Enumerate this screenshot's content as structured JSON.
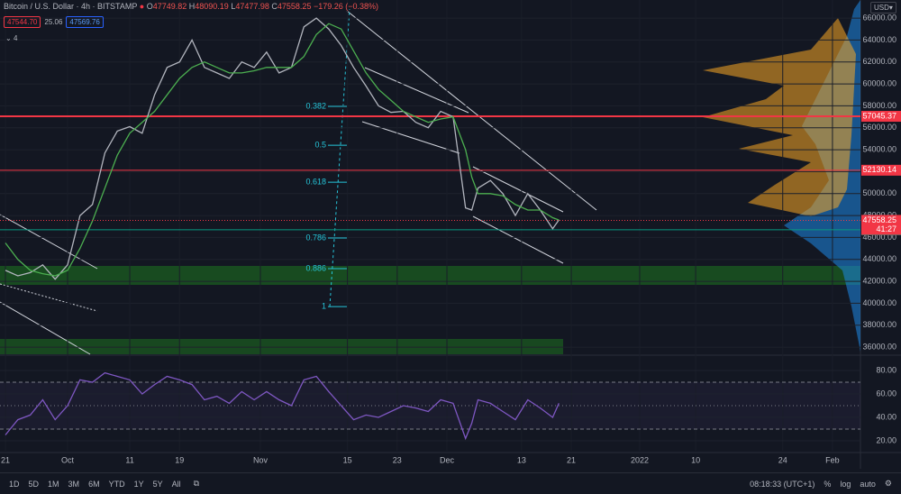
{
  "header": {
    "symbol": "Bitcoin / U.S. Dollar",
    "interval": "4h",
    "exchange": "BITSTAMP",
    "ohlc": [
      {
        "key": "O",
        "value": "47749.82"
      },
      {
        "key": "H",
        "value": "48090.19"
      },
      {
        "key": "L",
        "value": "47477.98"
      },
      {
        "key": "C",
        "value": "47558.25"
      }
    ],
    "change": "−179.26 (−0.38%)",
    "sell": "47544.70",
    "spread": "25.06",
    "buy": "47569.76",
    "indicators": "4",
    "currency": "USD"
  },
  "toolbar": {
    "ranges": [
      "1D",
      "5D",
      "1M",
      "3M",
      "6M",
      "YTD",
      "1Y",
      "5Y",
      "All"
    ],
    "clock": "08:18:33 (UTC+1)",
    "options": [
      "%",
      "log",
      "auto"
    ]
  },
  "chart_data": [
    {
      "type": "line",
      "x": [
        0,
        2,
        4,
        6,
        8,
        10,
        12,
        14,
        16,
        18,
        20,
        22,
        24,
        26,
        28,
        30,
        32,
        34,
        36,
        38,
        40,
        42,
        44,
        46,
        48,
        50,
        52,
        54,
        56,
        58,
        60,
        62,
        64,
        66,
        68,
        70,
        72,
        74,
        75,
        76,
        78,
        80,
        82,
        84,
        86,
        88,
        89
      ],
      "series": [
        {
          "color": "#b2b5be",
          "values": [
            43000,
            42500,
            42800,
            43500,
            42200,
            43500,
            48000,
            49000,
            53700,
            55700,
            56100,
            55500,
            59000,
            61500,
            62000,
            64000,
            61500,
            61000,
            60500,
            62000,
            61500,
            62900,
            61000,
            61500,
            65200,
            66000,
            65000,
            63500,
            61500,
            59800,
            58000,
            57400,
            57500,
            56500,
            56000,
            57500,
            57000,
            48700,
            48500,
            50500,
            51200,
            50000,
            48000,
            50000,
            48500,
            46800,
            47600
          ]
        },
        {
          "color": "#4caf50",
          "values": [
            45500,
            44000,
            43000,
            42700,
            42500,
            43000,
            45000,
            47500,
            50500,
            53500,
            55500,
            56500,
            57500,
            59000,
            60500,
            61500,
            62000,
            61500,
            61000,
            61000,
            61200,
            61500,
            61500,
            61500,
            62500,
            64500,
            65500,
            65000,
            63000,
            61000,
            59500,
            58500,
            57500,
            57000,
            56500,
            56800,
            57000,
            54000,
            51500,
            50000,
            50000,
            49800,
            49000,
            48500,
            48500,
            47800,
            47600
          ]
        }
      ],
      "xlim": [
        -0.87,
        137.5
      ],
      "xticks": [
        {
          "value": 0,
          "label": "21"
        },
        {
          "value": 10,
          "label": "Oct"
        },
        {
          "value": 20,
          "label": "11"
        },
        {
          "value": 28,
          "label": "19"
        },
        {
          "value": 41,
          "label": "Nov"
        },
        {
          "value": 55,
          "label": "15"
        },
        {
          "value": 63,
          "label": "23"
        },
        {
          "value": 71,
          "label": "Dec"
        },
        {
          "value": 83,
          "label": "13"
        },
        {
          "value": 91,
          "label": "21"
        },
        {
          "value": 102,
          "label": "2022"
        },
        {
          "value": 111,
          "label": "10"
        },
        {
          "value": 125,
          "label": "24"
        },
        {
          "value": 133,
          "label": "Feb"
        }
      ],
      "ylim": [
        35350,
        67650
      ],
      "yticks": [
        {
          "value": 36000,
          "label": "36000.00"
        },
        {
          "value": 38000,
          "label": "38000.00"
        },
        {
          "value": 40000,
          "label": "40000.00"
        },
        {
          "value": 42000,
          "label": "42000.00"
        },
        {
          "value": 44000,
          "label": "44000.00"
        },
        {
          "value": 46000,
          "label": "46000.00"
        },
        {
          "value": 48000,
          "label": "48000.00"
        },
        {
          "value": 50000,
          "label": "50000.00"
        },
        {
          "value": 52000,
          "label": "52000.00"
        },
        {
          "value": 54000,
          "label": "54000.00"
        },
        {
          "value": 56000,
          "label": "56000.00"
        },
        {
          "value": 58000,
          "label": "58000.00"
        },
        {
          "value": 60000,
          "label": "60000.00"
        },
        {
          "value": 62000,
          "label": "62000.00"
        },
        {
          "value": 64000,
          "label": "64000.00"
        },
        {
          "value": 66000,
          "label": "66000.00"
        }
      ],
      "price_lines": [
        {
          "value": 57045.37,
          "label": "57045.37",
          "color": "#f23645"
        },
        {
          "value": 52130.14,
          "label": "52130.14",
          "color": "#f23645"
        },
        {
          "value": 46700,
          "label": "46700.00",
          "color": "#089981"
        }
      ],
      "last_price": {
        "value": 47558.25,
        "label": "47558.25",
        "countdown": "41:27",
        "color": "#f23645"
      },
      "fib": {
        "levels": [
          0.382,
          0.5,
          0.618,
          0.786,
          0.886,
          1
        ],
        "prices": [
          57950,
          54410,
          51040,
          45950,
          43160,
          39700
        ],
        "color": "#26c6da"
      }
    },
    {
      "type": "line",
      "x": [
        0,
        2,
        4,
        6,
        8,
        10,
        12,
        14,
        16,
        18,
        20,
        22,
        24,
        26,
        28,
        30,
        32,
        34,
        36,
        38,
        40,
        42,
        44,
        46,
        48,
        50,
        52,
        54,
        56,
        58,
        60,
        62,
        64,
        66,
        68,
        70,
        72,
        74,
        75,
        76,
        78,
        80,
        82,
        84,
        86,
        88,
        89
      ],
      "series": [
        {
          "color": "#7e57c2",
          "values": [
            25,
            38,
            42,
            55,
            38,
            50,
            72,
            70,
            78,
            75,
            72,
            60,
            68,
            75,
            72,
            68,
            55,
            58,
            52,
            62,
            55,
            62,
            55,
            50,
            72,
            75,
            62,
            50,
            38,
            42,
            40,
            45,
            50,
            48,
            45,
            55,
            52,
            22,
            35,
            55,
            52,
            45,
            38,
            55,
            48,
            40,
            52
          ]
        }
      ],
      "xlim": [
        -0.87,
        137.5
      ],
      "ylim": [
        11.5,
        92.3
      ],
      "yticks": [
        {
          "value": 20,
          "label": "20.00"
        },
        {
          "value": 40,
          "label": "40.00"
        },
        {
          "value": 60,
          "label": "60.00"
        },
        {
          "value": 80,
          "label": "80.00"
        }
      ],
      "bands": [
        30,
        70
      ],
      "midline": 50
    }
  ]
}
